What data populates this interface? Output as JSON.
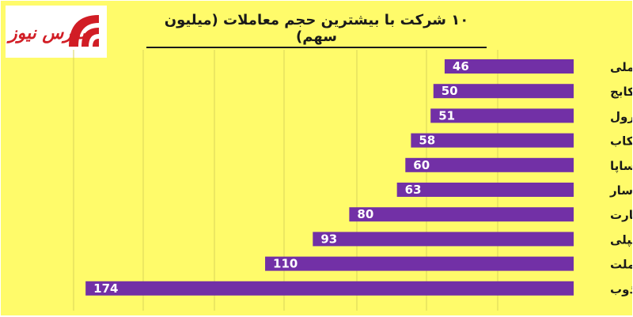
{
  "logo": {
    "text": "بورس نیوز",
    "colors": {
      "brand": "#d11d25"
    }
  },
  "chart_data": {
    "type": "bar",
    "orientation": "horizontal",
    "title": "۱۰ شرکت با بیشترین حجم معاملات (میلیون سهم)",
    "categories": [
      "فملی",
      "وسکابج",
      "پترول",
      "وسکاب",
      "خساپا",
      "وپاسار",
      "وتجارت",
      "شپلی",
      "وبملت",
      "ذوب"
    ],
    "values": [
      46,
      50,
      51,
      58,
      60,
      63,
      80,
      93,
      110,
      174
    ],
    "bar_color": "#7230a6",
    "background_color": "#fffb6a",
    "grid": true,
    "value_labels": true
  }
}
